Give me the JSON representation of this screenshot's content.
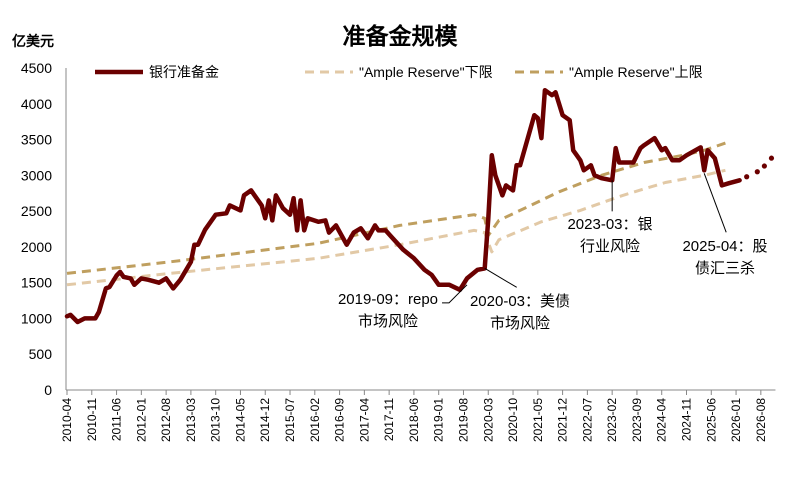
{
  "chart_data": {
    "type": "line",
    "title": "准备金规模",
    "ylabel": "亿美元",
    "ylim": [
      0,
      4500
    ],
    "yticks": [
      0,
      500,
      1000,
      1500,
      2000,
      2500,
      3000,
      3500,
      4000,
      4500
    ],
    "xlim": [
      "2010-04",
      "2026-11"
    ],
    "xticks": [
      "2010-04",
      "2010-11",
      "2011-06",
      "2012-01",
      "2012-08",
      "2013-03",
      "2013-10",
      "2014-05",
      "2014-12",
      "2015-07",
      "2016-02",
      "2016-09",
      "2017-04",
      "2017-11",
      "2018-06",
      "2019-01",
      "2019-08",
      "2020-03",
      "2020-10",
      "2021-05",
      "2021-12",
      "2022-07",
      "2023-02",
      "2023-09",
      "2024-04",
      "2024-11",
      "2025-06",
      "2026-01",
      "2026-08"
    ],
    "grid": false,
    "legend_position": "top",
    "series": [
      {
        "name": "银行准备金",
        "color": "#6b0000",
        "style": "solid",
        "points": [
          [
            "2010-04",
            1030
          ],
          [
            "2010-05",
            1050
          ],
          [
            "2010-07",
            950
          ],
          [
            "2010-09",
            1000
          ],
          [
            "2010-12",
            1000
          ],
          [
            "2011-01",
            1090
          ],
          [
            "2011-03",
            1420
          ],
          [
            "2011-04",
            1440
          ],
          [
            "2011-06",
            1600
          ],
          [
            "2011-07",
            1650
          ],
          [
            "2011-08",
            1580
          ],
          [
            "2011-10",
            1560
          ],
          [
            "2011-11",
            1470
          ],
          [
            "2012-01",
            1560
          ],
          [
            "2012-03",
            1540
          ],
          [
            "2012-06",
            1500
          ],
          [
            "2012-08",
            1560
          ],
          [
            "2012-10",
            1420
          ],
          [
            "2012-12",
            1540
          ],
          [
            "2013-03",
            1790
          ],
          [
            "2013-04",
            2030
          ],
          [
            "2013-05",
            2030
          ],
          [
            "2013-07",
            2240
          ],
          [
            "2013-10",
            2450
          ],
          [
            "2014-01",
            2470
          ],
          [
            "2014-02",
            2580
          ],
          [
            "2014-05",
            2510
          ],
          [
            "2014-06",
            2720
          ],
          [
            "2014-08",
            2790
          ],
          [
            "2014-09",
            2720
          ],
          [
            "2014-11",
            2580
          ],
          [
            "2014-12",
            2400
          ],
          [
            "2015-01",
            2650
          ],
          [
            "2015-02",
            2370
          ],
          [
            "2015-03",
            2720
          ],
          [
            "2015-05",
            2540
          ],
          [
            "2015-07",
            2450
          ],
          [
            "2015-08",
            2680
          ],
          [
            "2015-09",
            2230
          ],
          [
            "2015-10",
            2650
          ],
          [
            "2015-11",
            2230
          ],
          [
            "2015-12",
            2400
          ],
          [
            "2016-03",
            2350
          ],
          [
            "2016-05",
            2370
          ],
          [
            "2016-06",
            2200
          ],
          [
            "2016-08",
            2300
          ],
          [
            "2016-11",
            2030
          ],
          [
            "2017-01",
            2200
          ],
          [
            "2017-03",
            2260
          ],
          [
            "2017-05",
            2120
          ],
          [
            "2017-07",
            2300
          ],
          [
            "2017-08",
            2230
          ],
          [
            "2017-10",
            2230
          ],
          [
            "2017-12",
            2120
          ],
          [
            "2018-03",
            1960
          ],
          [
            "2018-06",
            1840
          ],
          [
            "2018-09",
            1680
          ],
          [
            "2018-11",
            1610
          ],
          [
            "2019-01",
            1470
          ],
          [
            "2019-04",
            1470
          ],
          [
            "2019-07",
            1400
          ],
          [
            "2019-09",
            1560
          ],
          [
            "2019-12",
            1680
          ],
          [
            "2020-02",
            1700
          ],
          [
            "2020-03",
            2400
          ],
          [
            "2020-04",
            3280
          ],
          [
            "2020-05",
            3000
          ],
          [
            "2020-07",
            2720
          ],
          [
            "2020-08",
            2860
          ],
          [
            "2020-10",
            2790
          ],
          [
            "2020-11",
            3140
          ],
          [
            "2020-12",
            3140
          ],
          [
            "2021-02",
            3490
          ],
          [
            "2021-04",
            3840
          ],
          [
            "2021-05",
            3800
          ],
          [
            "2021-06",
            3520
          ],
          [
            "2021-07",
            4190
          ],
          [
            "2021-09",
            4120
          ],
          [
            "2021-10",
            4160
          ],
          [
            "2021-12",
            3840
          ],
          [
            "2022-02",
            3770
          ],
          [
            "2022-03",
            3350
          ],
          [
            "2022-04",
            3280
          ],
          [
            "2022-05",
            3210
          ],
          [
            "2022-06",
            3070
          ],
          [
            "2022-08",
            3140
          ],
          [
            "2022-09",
            3000
          ],
          [
            "2022-11",
            2960
          ],
          [
            "2023-02",
            2930
          ],
          [
            "2023-03",
            3380
          ],
          [
            "2023-04",
            3180
          ],
          [
            "2023-05",
            3180
          ],
          [
            "2023-08",
            3180
          ],
          [
            "2023-10",
            3380
          ],
          [
            "2023-11",
            3420
          ],
          [
            "2024-02",
            3520
          ],
          [
            "2024-04",
            3350
          ],
          [
            "2024-05",
            3380
          ],
          [
            "2024-07",
            3210
          ],
          [
            "2024-09",
            3210
          ],
          [
            "2024-11",
            3280
          ],
          [
            "2025-03",
            3390
          ],
          [
            "2025-04",
            3070
          ],
          [
            "2025-05",
            3350
          ],
          [
            "2025-07",
            3240
          ],
          [
            "2025-09",
            2860
          ],
          [
            "2025-11",
            2890
          ],
          [
            "2026-02",
            2930
          ]
        ],
        "projection": [
          [
            "2026-04",
            2980
          ],
          [
            "2026-07",
            3050
          ],
          [
            "2026-09",
            3130
          ],
          [
            "2026-11",
            3240
          ]
        ]
      },
      {
        "name": "\"Ample Reserve\"下限",
        "color": "#e2c9a6",
        "style": "dashed",
        "points": [
          [
            "2010-04",
            1470
          ],
          [
            "2012-09",
            1630
          ],
          [
            "2016-03",
            1840
          ],
          [
            "2018-02",
            2030
          ],
          [
            "2019-11",
            2230
          ],
          [
            "2020-02",
            2200
          ],
          [
            "2020-04",
            1930
          ],
          [
            "2020-06",
            2100
          ],
          [
            "2021-06",
            2350
          ],
          [
            "2022-05",
            2510
          ],
          [
            "2023-05",
            2720
          ],
          [
            "2024-05",
            2900
          ],
          [
            "2025-04",
            3000
          ],
          [
            "2025-10",
            3070
          ]
        ]
      },
      {
        "name": "\"Ample Reserve\"上限",
        "color": "#bf9f5f",
        "style": "dashed",
        "points": [
          [
            "2010-04",
            1630
          ],
          [
            "2012-09",
            1790
          ],
          [
            "2016-03",
            2050
          ],
          [
            "2018-02",
            2300
          ],
          [
            "2019-11",
            2450
          ],
          [
            "2020-02",
            2400
          ],
          [
            "2020-03",
            2160
          ],
          [
            "2020-06",
            2370
          ],
          [
            "2021-03",
            2580
          ],
          [
            "2021-11",
            2770
          ],
          [
            "2022-11",
            3000
          ],
          [
            "2023-11",
            3180
          ],
          [
            "2024-10",
            3280
          ],
          [
            "2025-04",
            3350
          ],
          [
            "2025-10",
            3450
          ]
        ]
      }
    ],
    "annotations": [
      {
        "lines": [
          "2019-09：repo",
          "市场风险"
        ],
        "date": "2019-09",
        "value": 1470
      },
      {
        "lines": [
          "2020-03：美债",
          "市场风险"
        ],
        "date": "2020-02",
        "value": 1700
      },
      {
        "lines": [
          "2023-03：银",
          "行业风险"
        ],
        "date": "2023-02",
        "value": 2930
      },
      {
        "lines": [
          "2025-04：股",
          "债汇三杀"
        ],
        "date": "2025-04",
        "value": 3070
      }
    ]
  }
}
